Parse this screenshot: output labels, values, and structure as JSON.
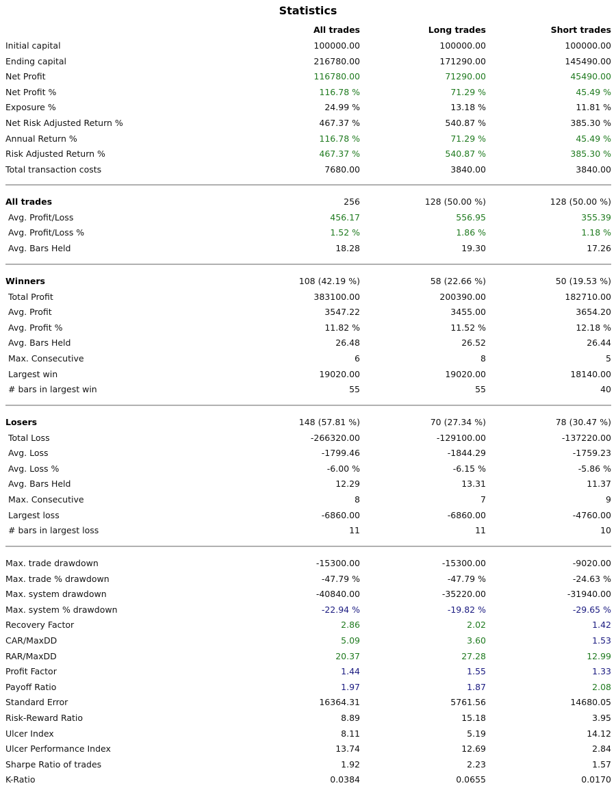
{
  "title": "Statistics",
  "headers": [
    "All trades",
    "Long trades",
    "Short trades"
  ],
  "sections": [
    {
      "rows": [
        {
          "label": "Initial capital",
          "values": [
            "100000.00",
            "100000.00",
            "100000.00"
          ]
        },
        {
          "label": "Ending capital",
          "values": [
            "216780.00",
            "171290.00",
            "145490.00"
          ]
        },
        {
          "label": "Net Profit",
          "values": [
            "116780.00",
            "71290.00",
            "45490.00"
          ],
          "color": "green"
        },
        {
          "label": "Net Profit %",
          "values": [
            "116.78 %",
            "71.29 %",
            "45.49 %"
          ],
          "color": "green"
        },
        {
          "label": "Exposure %",
          "values": [
            "24.99 %",
            "13.18 %",
            "11.81 %"
          ]
        },
        {
          "label": "Net Risk Adjusted Return %",
          "values": [
            "467.37 %",
            "540.87 %",
            "385.30 %"
          ]
        },
        {
          "label": "Annual Return %",
          "values": [
            "116.78 %",
            "71.29 %",
            "45.49 %"
          ],
          "color": "green"
        },
        {
          "label": "Risk Adjusted Return %",
          "values": [
            "467.37 %",
            "540.87 %",
            "385.30 %"
          ],
          "color": "green"
        },
        {
          "label": "Total transaction costs",
          "values": [
            "7680.00",
            "3840.00",
            "3840.00"
          ]
        }
      ]
    },
    {
      "rows": [
        {
          "label": "All trades",
          "values": [
            "256",
            "128 (50.00 %)",
            "128 (50.00 %)"
          ],
          "bold": true
        },
        {
          "label": "Avg. Profit/Loss",
          "values": [
            "456.17",
            "556.95",
            "355.39"
          ],
          "color": "green",
          "sub": true
        },
        {
          "label": "Avg. Profit/Loss %",
          "values": [
            "1.52 %",
            "1.86 %",
            "1.18 %"
          ],
          "color": "green",
          "sub": true
        },
        {
          "label": "Avg. Bars Held",
          "values": [
            "18.28",
            "19.30",
            "17.26"
          ],
          "sub": true
        }
      ]
    },
    {
      "rows": [
        {
          "label": "Winners",
          "values": [
            "108 (42.19 %)",
            "58 (22.66 %)",
            "50 (19.53 %)"
          ],
          "bold": true
        },
        {
          "label": "Total Profit",
          "values": [
            "383100.00",
            "200390.00",
            "182710.00"
          ],
          "sub": true
        },
        {
          "label": "Avg. Profit",
          "values": [
            "3547.22",
            "3455.00",
            "3654.20"
          ],
          "sub": true
        },
        {
          "label": "Avg. Profit %",
          "values": [
            "11.82 %",
            "11.52 %",
            "12.18 %"
          ],
          "sub": true
        },
        {
          "label": "Avg. Bars Held",
          "values": [
            "26.48",
            "26.52",
            "26.44"
          ],
          "sub": true
        },
        {
          "label": "Max. Consecutive",
          "values": [
            "6",
            "8",
            "5"
          ],
          "sub": true
        },
        {
          "label": "Largest win",
          "values": [
            "19020.00",
            "19020.00",
            "18140.00"
          ],
          "sub": true
        },
        {
          "label": "# bars in largest win",
          "values": [
            "55",
            "55",
            "40"
          ],
          "sub": true
        }
      ]
    },
    {
      "rows": [
        {
          "label": "Losers",
          "values": [
            "148 (57.81 %)",
            "70 (27.34 %)",
            "78 (30.47 %)"
          ],
          "bold": true
        },
        {
          "label": "Total Loss",
          "values": [
            "-266320.00",
            "-129100.00",
            "-137220.00"
          ],
          "sub": true
        },
        {
          "label": "Avg. Loss",
          "values": [
            "-1799.46",
            "-1844.29",
            "-1759.23"
          ],
          "sub": true
        },
        {
          "label": "Avg. Loss %",
          "values": [
            "-6.00 %",
            "-6.15 %",
            "-5.86 %"
          ],
          "sub": true
        },
        {
          "label": "Avg. Bars Held",
          "values": [
            "12.29",
            "13.31",
            "11.37"
          ],
          "sub": true
        },
        {
          "label": "Max. Consecutive",
          "values": [
            "8",
            "7",
            "9"
          ],
          "sub": true
        },
        {
          "label": "Largest loss",
          "values": [
            "-6860.00",
            "-6860.00",
            "-4760.00"
          ],
          "sub": true
        },
        {
          "label": "# bars in largest loss",
          "values": [
            "11",
            "11",
            "10"
          ],
          "sub": true
        }
      ]
    },
    {
      "rows": [
        {
          "label": "Max. trade drawdown",
          "values": [
            "-15300.00",
            "-15300.00",
            "-9020.00"
          ]
        },
        {
          "label": "Max. trade % drawdown",
          "values": [
            "-47.79 %",
            "-47.79 %",
            "-24.63 %"
          ]
        },
        {
          "label": "Max. system drawdown",
          "values": [
            "-40840.00",
            "-35220.00",
            "-31940.00"
          ]
        },
        {
          "label": "Max. system % drawdown",
          "values": [
            "-22.94 %",
            "-19.82 %",
            "-29.65 %"
          ],
          "colors": [
            "navy",
            "navy",
            "navy"
          ]
        },
        {
          "label": "Recovery Factor",
          "values": [
            "2.86",
            "2.02",
            "1.42"
          ],
          "colors": [
            "green",
            "green",
            "navy"
          ]
        },
        {
          "label": "CAR/MaxDD",
          "values": [
            "5.09",
            "3.60",
            "1.53"
          ],
          "colors": [
            "green",
            "green",
            "navy"
          ]
        },
        {
          "label": "RAR/MaxDD",
          "values": [
            "20.37",
            "27.28",
            "12.99"
          ],
          "colors": [
            "green",
            "green",
            "green"
          ]
        },
        {
          "label": "Profit Factor",
          "values": [
            "1.44",
            "1.55",
            "1.33"
          ],
          "colors": [
            "navy",
            "navy",
            "navy"
          ]
        },
        {
          "label": "Payoff Ratio",
          "values": [
            "1.97",
            "1.87",
            "2.08"
          ],
          "colors": [
            "navy",
            "navy",
            "green"
          ]
        },
        {
          "label": "Standard Error",
          "values": [
            "16364.31",
            "5761.56",
            "14680.05"
          ]
        },
        {
          "label": "Risk-Reward Ratio",
          "values": [
            "8.89",
            "15.18",
            "3.95"
          ]
        },
        {
          "label": "Ulcer Index",
          "values": [
            "8.11",
            "5.19",
            "14.12"
          ]
        },
        {
          "label": "Ulcer Performance Index",
          "values": [
            "13.74",
            "12.69",
            "2.84"
          ]
        },
        {
          "label": "Sharpe Ratio of trades",
          "values": [
            "1.92",
            "2.23",
            "1.57"
          ]
        },
        {
          "label": "K-Ratio",
          "values": [
            "0.0384",
            "0.0655",
            "0.0170"
          ]
        }
      ]
    }
  ],
  "colors": {
    "green": "#1f7a1f",
    "navy": "#1a1a80",
    "divider": "#b0b0b0"
  }
}
